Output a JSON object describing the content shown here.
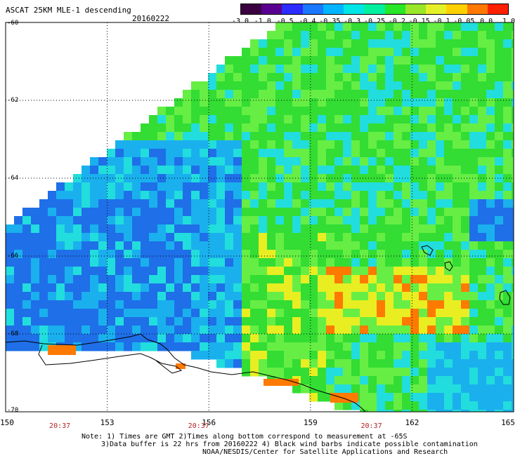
{
  "header": {
    "title": "ASCAT 25KM MLE-1 descending",
    "date": "20160222"
  },
  "colorbar": {
    "colors": [
      "#3a0040",
      "#5a0090",
      "#2c2cff",
      "#1a78ff",
      "#00b4ff",
      "#00e6e6",
      "#00f0a0",
      "#28e628",
      "#9ae628",
      "#e6f028",
      "#ffd000",
      "#ff7800",
      "#ff2000"
    ],
    "labels": [
      "-3.0",
      "-1.0",
      "-0.5",
      "-0.4",
      "-0.35",
      "-0.3",
      "-0.25",
      "-0.2",
      "-0.15",
      "-0.1",
      "-0.05",
      "0.0",
      "1.0"
    ]
  },
  "axes": {
    "x_ticks": [
      "150",
      "153",
      "156",
      "159",
      "162",
      "165"
    ],
    "y_ticks": [
      "-60",
      "-62",
      "-64",
      "-66",
      "-68",
      "-70"
    ]
  },
  "pass_times": [
    "20:37",
    "20:37",
    "20:37"
  ],
  "notes": {
    "line1": "Note: 1) Times are GMT 2)Times along bottom correspond to measurement at -65S",
    "line2": "3)Data buffer is 22 hrs from 20160222 4) Black wind barbs indicate possible contamination",
    "line3": "NOAA/NESDIS/Center for Satellite Applications and Research"
  },
  "map": {
    "x_range": [
      150,
      165
    ],
    "y_range": [
      -70,
      -60
    ],
    "gridlines": "dotted",
    "swath_colors": {
      "green": "#33dd33",
      "light_green": "#66ee44",
      "cyan": "#22dddd",
      "light_blue": "#1ab0ee",
      "blue": "#1f6fe8",
      "yellow": "#e8ee22",
      "orange": "#ff7a00"
    }
  }
}
